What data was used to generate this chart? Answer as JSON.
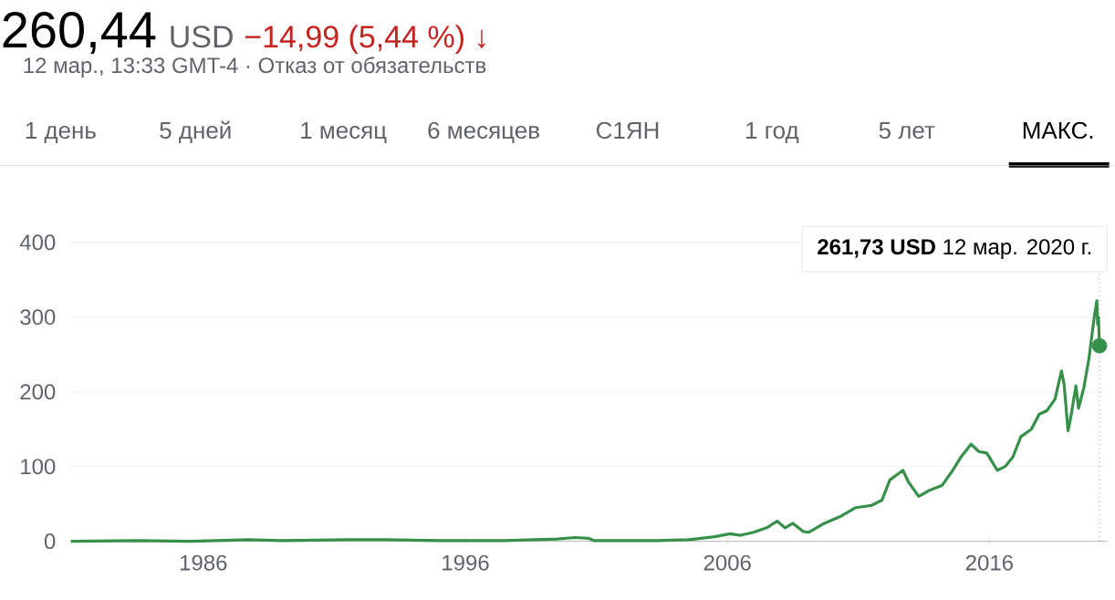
{
  "chart_data": {
    "type": "line",
    "title": "260,44",
    "annotations": [
      "USD",
      "−14,99 (5,44 %) ↓",
      "12 мар., 13:33 GMT-4 · Отказ от обязательств",
      "1 день",
      "5 дней",
      "1 месяц",
      "6 месяцев",
      "С1ЯН",
      "1 год",
      "5 лет",
      "МАКС.",
      "**261,73 USD**  12 мар. 2020 г."
    ],
    "series": [
      {
        "type": "scatter",
        "x": [
          2020.2
        ],
        "values": [
          261.73
        ],
        "color": "#37904a"
      }
    ],
    "x": [
      1980.95,
      1983.5,
      1985.5,
      1987.7,
      1989,
      1991.5,
      1993,
      1995,
      1997.5,
      1999.5,
      2000.2,
      2000.7,
      2000.9,
      2003.3,
      2004.5,
      2005.5,
      2006.1,
      2006.5,
      2007,
      2007.5,
      2007.9,
      2008.2,
      2008.5,
      2008.9,
      2009.1,
      2009.7,
      2010.3,
      2010.9,
      2011.5,
      2011.9,
      2012.2,
      2012.7,
      2012.9,
      2013.3,
      2013.7,
      2014.2,
      2014.6,
      2014.9,
      2015.3,
      2015.6,
      2015.9,
      2016.3,
      2016.6,
      2016.9,
      2017.2,
      2017.6,
      2017.9,
      2018.2,
      2018.5,
      2018.75,
      2018.85,
      2019.0,
      2019.1,
      2019.3,
      2019.4,
      2019.6,
      2019.8,
      2020.0,
      2020.1,
      2020.13,
      2020.16,
      2020.2
    ],
    "values": [
      0,
      1,
      0,
      2,
      1,
      2,
      2,
      1,
      1,
      3,
      5,
      4,
      1,
      1,
      2,
      6,
      10,
      8,
      12,
      18,
      27,
      18,
      24,
      13,
      12,
      24,
      33,
      45,
      48,
      55,
      82,
      95,
      80,
      60,
      68,
      75,
      95,
      112,
      130,
      120,
      118,
      95,
      100,
      113,
      140,
      150,
      170,
      175,
      190,
      228,
      210,
      148,
      165,
      208,
      178,
      205,
      245,
      300,
      322,
      290,
      300,
      261.73
    ],
    "color": "#37904a",
    "xlim": [
      1980.9,
      2020.5
    ],
    "ylim": [
      0,
      400
    ],
    "xticks": [
      1986,
      1996,
      2006,
      2016
    ],
    "yticks": [
      0,
      100,
      200,
      300,
      400
    ],
    "grid": "y",
    "ref_lines": [
      {
        "axis": "x",
        "value": 2020.2,
        "line_style": "dotted",
        "color": "#555555"
      }
    ]
  }
}
